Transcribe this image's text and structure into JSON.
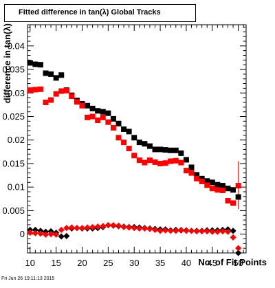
{
  "title": "Fitted difference in tan(λ)  Global Tracks",
  "footer_timestamp": "Fri Jun 26 19:11:13 2015",
  "chart_data": {
    "type": "scatter",
    "xlabel": "No. of Fit Points",
    "ylabel": "difference in tan(λ)",
    "xlim": [
      9.5,
      51.5
    ],
    "ylim": [
      -0.004,
      0.0445
    ],
    "x_ticks": [
      10,
      15,
      20,
      25,
      30,
      35,
      40,
      45,
      50
    ],
    "x_tick_labels": [
      "10",
      "15",
      "20",
      "25",
      "30",
      "35",
      "40",
      "45",
      "50"
    ],
    "y_ticks": [
      0,
      0.005,
      0.01,
      0.015,
      0.02,
      0.025,
      0.03,
      0.035,
      0.04
    ],
    "y_tick_labels": [
      "0",
      "0.005",
      "0.01",
      "0.015",
      "0.02",
      "0.025",
      "0.03",
      "0.035",
      "0.04"
    ],
    "series": [
      {
        "marker": "square",
        "color": "#000000",
        "x": [
          10,
          11,
          12,
          13,
          14,
          15,
          16,
          17,
          18,
          19,
          20,
          21,
          22,
          23,
          24,
          25,
          26,
          27,
          28,
          29,
          30,
          31,
          32,
          33,
          34,
          35,
          36,
          37,
          38,
          39,
          40,
          41,
          42,
          43,
          44,
          45,
          46,
          47,
          48,
          49,
          50
        ],
        "y": [
          0.0364,
          0.0361,
          0.036,
          0.0342,
          0.034,
          0.0332,
          0.0338,
          0.0306,
          0.0295,
          0.0284,
          0.0277,
          0.0273,
          0.0267,
          0.0262,
          0.026,
          0.0257,
          0.0245,
          0.0235,
          0.0223,
          0.0218,
          0.0205,
          0.0195,
          0.0192,
          0.0187,
          0.018,
          0.018,
          0.0179,
          0.0178,
          0.0178,
          0.0172,
          0.0158,
          0.0142,
          0.0126,
          0.0118,
          0.0113,
          0.011,
          0.0105,
          0.0103,
          0.0097,
          0.0094,
          0.0079
        ]
      },
      {
        "marker": "square",
        "color": "#ff0000",
        "x": [
          10,
          11,
          12,
          13,
          14,
          15,
          16,
          17,
          18,
          19,
          20,
          21,
          22,
          23,
          24,
          25,
          26,
          27,
          28,
          29,
          30,
          31,
          32,
          33,
          34,
          35,
          36,
          37,
          38,
          39,
          40,
          41,
          42,
          43,
          44,
          45,
          46,
          47,
          48,
          49,
          50
        ],
        "y": [
          0.0306,
          0.0307,
          0.0308,
          0.028,
          0.0285,
          0.0298,
          0.0304,
          0.0305,
          0.0293,
          0.0281,
          0.0273,
          0.0248,
          0.025,
          0.0242,
          0.0248,
          0.0238,
          0.0226,
          0.0205,
          0.0195,
          0.0182,
          0.0167,
          0.0157,
          0.0152,
          0.0157,
          0.0153,
          0.015,
          0.0151,
          0.0155,
          0.0156,
          0.0152,
          0.0135,
          0.013,
          0.0118,
          0.0112,
          0.0104,
          0.0097,
          0.0094,
          0.0093,
          0.0071,
          0.0066,
          0.0103
        ]
      },
      {
        "marker": "diamond",
        "color": "#000000",
        "x": [
          10,
          11,
          12,
          13,
          14,
          15,
          16,
          17,
          18,
          19,
          20,
          21,
          22,
          23,
          24,
          25,
          26,
          27,
          28,
          29,
          30,
          31,
          32,
          33,
          34,
          35,
          36,
          37,
          38,
          39,
          40,
          41,
          42,
          43,
          44,
          45,
          46,
          47,
          48,
          49,
          50
        ],
        "y": [
          0.0009,
          0.0009,
          0.0007,
          0.0005,
          0.0006,
          0.0003,
          -0.0005,
          -0.0004,
          0.0012,
          0.0013,
          0.0012,
          0.0012,
          0.0012,
          0.0013,
          0.0015,
          0.0019,
          0.0018,
          0.0017,
          0.0016,
          0.0015,
          0.0015,
          0.0014,
          0.0013,
          0.0012,
          0.0011,
          0.001,
          0.001,
          0.0008,
          0.0009,
          0.0008,
          0.0008,
          0.0007,
          0.0007,
          0.0007,
          0.0008,
          0.0008,
          0.0008,
          0.0009,
          0.001,
          0.0007,
          -0.004
        ]
      },
      {
        "marker": "diamond",
        "color": "#ff0000",
        "x": [
          10,
          11,
          12,
          13,
          14,
          15,
          16,
          17,
          18,
          19,
          20,
          21,
          22,
          23,
          24,
          25,
          26,
          27,
          28,
          29,
          30,
          31,
          32,
          33,
          34,
          35,
          36,
          37,
          38,
          39,
          40,
          41,
          42,
          43,
          44,
          45,
          46,
          47,
          48,
          49,
          50
        ],
        "y": [
          0.0003,
          0.0002,
          0.0001,
          -0.0001,
          0.0,
          -0.0001,
          0.0009,
          0.0013,
          0.0014,
          0.0013,
          0.0013,
          0.0014,
          0.0015,
          0.0016,
          0.0017,
          0.0019,
          0.0019,
          0.0018,
          0.0015,
          0.0014,
          0.0013,
          0.0012,
          0.0012,
          0.0011,
          0.0009,
          0.0007,
          0.0008,
          0.0007,
          0.0007,
          0.0009,
          0.0007,
          0.0007,
          0.0006,
          0.0006,
          0.0006,
          0.0005,
          0.0005,
          0.0006,
          0.0005,
          -0.0007,
          -0.003
        ]
      }
    ],
    "error_bar": {
      "x": 50,
      "low": 0.0053,
      "high": 0.0155,
      "color": "#ff0000"
    }
  }
}
